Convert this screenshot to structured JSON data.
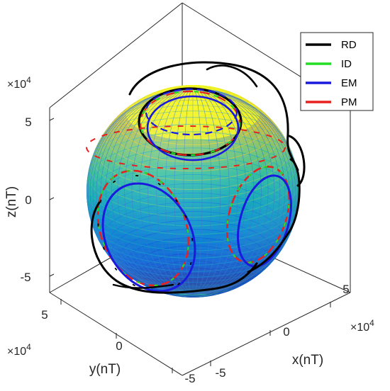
{
  "chart_data": {
    "type": "scatter",
    "chart_kind": "3d-line-on-sphere",
    "title": "",
    "xlabel": "x(nT)",
    "ylabel": "y(nT)",
    "zlabel": "z(nT)",
    "exponent_label": "×10",
    "exponent_power": "4",
    "x_ticks": [
      "-5",
      "0",
      "5"
    ],
    "y_ticks": [
      "5",
      "0",
      "-5"
    ],
    "z_ticks": [
      "5",
      "0",
      "-5"
    ],
    "xlim": [
      -70000,
      70000
    ],
    "ylim": [
      -70000,
      70000
    ],
    "zlim": [
      -70000,
      70000
    ],
    "grid": false,
    "box": true,
    "legend_position": "top-right",
    "sphere_radius": 55000,
    "sphere_colormap": "parula (blue low z, yellow high z)",
    "series": [
      {
        "name": "RD",
        "color": "#000000"
      },
      {
        "name": "ID",
        "color": "#22dd22"
      },
      {
        "name": "EM",
        "color": "#1a1adf"
      },
      {
        "name": "PM",
        "color": "#e8201f"
      }
    ]
  }
}
